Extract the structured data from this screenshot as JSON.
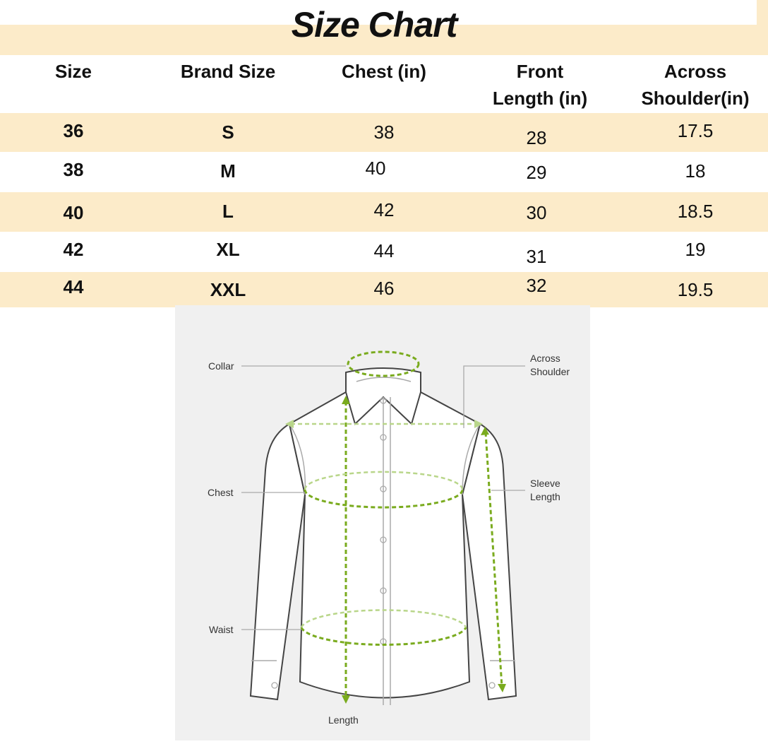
{
  "title": "Size Chart",
  "colors": {
    "band": "#fcebc9",
    "measure_green": "#7aab1e",
    "diagram_bg": "#f0f0f0"
  },
  "table": {
    "headers": [
      "Size",
      "Brand Size",
      "Chest (in)",
      "Front Length (in)",
      "Across Shoulder(in)"
    ],
    "header_lines": {
      "front": [
        "Front",
        "Length (in)"
      ],
      "shoulder": [
        "Across",
        "Shoulder(in)"
      ]
    },
    "rows": [
      [
        "36",
        "S",
        "38",
        "28",
        "17.5"
      ],
      [
        "38",
        "M",
        "40",
        "29",
        "18"
      ],
      [
        "40",
        "L",
        "42",
        "30",
        "18.5"
      ],
      [
        "42",
        "XL",
        "44",
        "31",
        "19"
      ],
      [
        "44",
        "XXL",
        "46",
        "32",
        "19.5"
      ]
    ]
  },
  "diagram": {
    "labels": {
      "collar": "Collar",
      "chest": "Chest",
      "waist": "Waist",
      "length": "Length",
      "across_shoulder": [
        "Across",
        "Shoulder"
      ],
      "sleeve_length": [
        "Sleeve",
        "Length"
      ]
    }
  }
}
